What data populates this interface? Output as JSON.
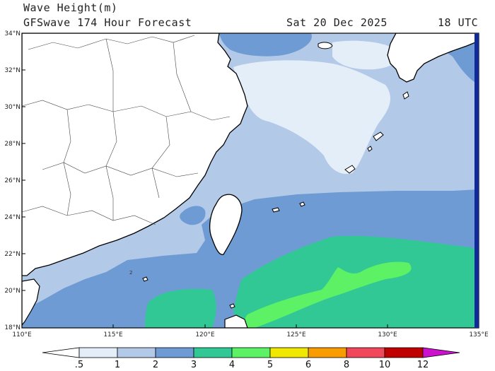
{
  "header": {
    "title": "Wave Height(m)",
    "subtitle": "GFSwave 174 Hour Forecast",
    "date": "Sat 20 Dec 2025",
    "time": "18 UTC"
  },
  "map": {
    "lon_range": [
      110,
      135
    ],
    "lat_range": [
      18,
      34
    ],
    "lat_ticks": [
      "34°N",
      "32°N",
      "30°N",
      "28°N",
      "26°N",
      "24°N",
      "22°N",
      "20°N",
      "18°N"
    ],
    "lon_ticks": [
      "110°E",
      "115°E",
      "120°E",
      "125°E",
      "130°E",
      "135°E"
    ],
    "annotation": "2",
    "land_color": "#ffffff"
  },
  "colorbar": {
    "labels": [
      ".5",
      "1",
      "2",
      "3",
      "4",
      "5",
      "6",
      "8",
      "10",
      "12"
    ],
    "colors": [
      "#e4eef8",
      "#b3c9e8",
      "#6f9bd4",
      "#32c895",
      "#5df266",
      "#f0e800",
      "#f89c00",
      "#f0485a",
      "#c00000",
      "#cc10cc"
    ]
  }
}
